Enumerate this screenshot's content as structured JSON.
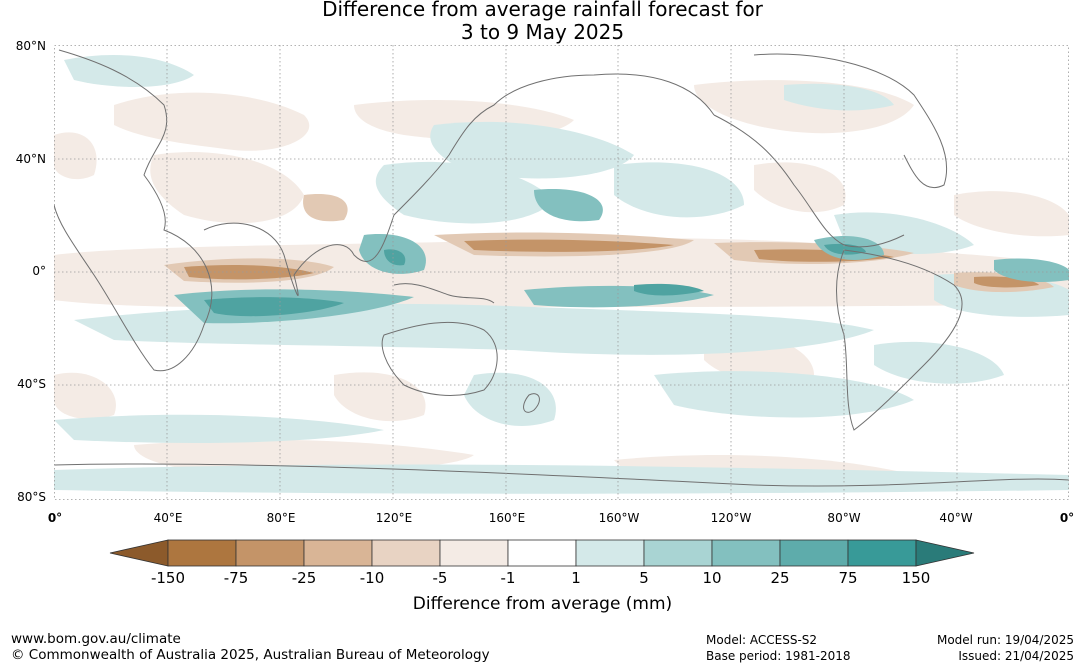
{
  "title": {
    "line1": "Difference from average rainfall forecast for",
    "line2": "3 to 9 May 2025"
  },
  "lat_labels": [
    "80°N",
    "40°N",
    "0°",
    "40°S",
    "80°S"
  ],
  "lon_labels": [
    "0°",
    "40°E",
    "80°E",
    "120°E",
    "160°E",
    "160°W",
    "120°W",
    "80°W",
    "40°W",
    "0°"
  ],
  "colorbar": {
    "label": "Difference from average (mm)",
    "ticks": [
      "-150",
      "-75",
      "-25",
      "-10",
      "-5",
      "-1",
      "1",
      "5",
      "10",
      "25",
      "75",
      "150"
    ],
    "colors": [
      "#8c5a2b",
      "#ad763f",
      "#c49468",
      "#d9b596",
      "#e8d3c3",
      "#f4ebe5",
      "#ffffff",
      "#d4e9e9",
      "#a9d4d3",
      "#83c0bf",
      "#5eacab",
      "#389a98",
      "#2a7b79"
    ]
  },
  "footer": {
    "url": "www.bom.gov.au/climate",
    "copyright": "© Commonwealth of Australia 2025, Australian Bureau of Meteorology",
    "model": "Model: ACCESS-S2",
    "base_period": "Base period: 1981-2018",
    "model_run": "Model run: 19/04/2025",
    "issued": "Issued: 21/04/2025"
  }
}
